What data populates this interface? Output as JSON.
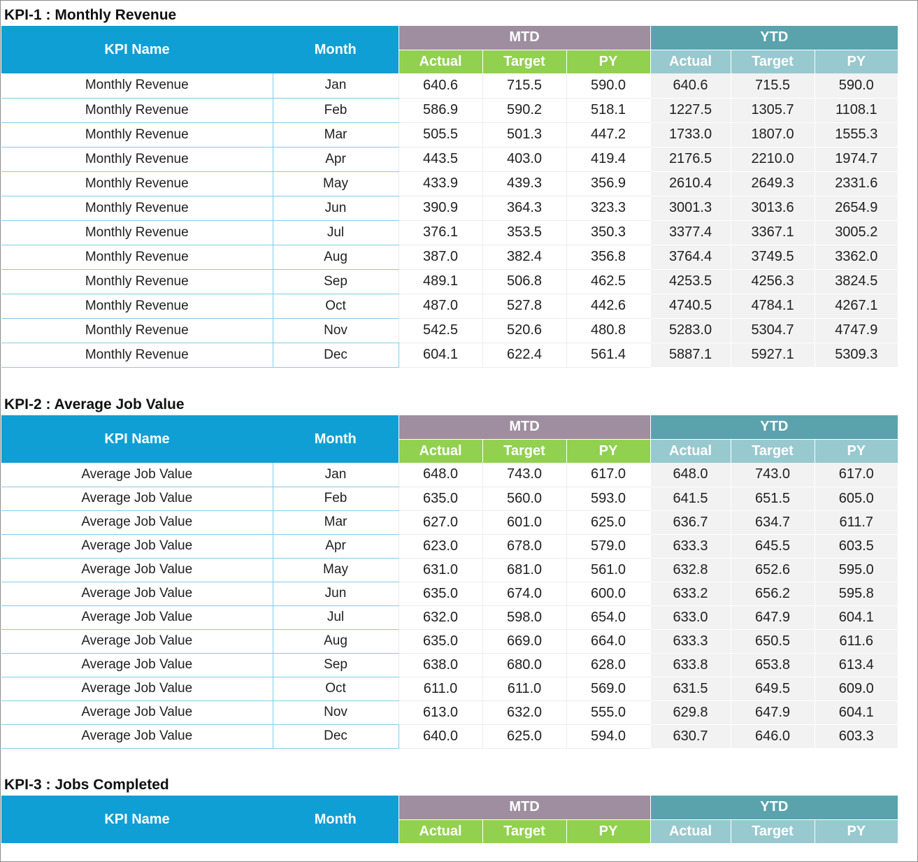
{
  "headers": {
    "kpi_name": "KPI Name",
    "month": "Month",
    "mtd": "MTD",
    "ytd": "YTD",
    "actual": "Actual",
    "target": "Target",
    "py": "PY"
  },
  "colors": {
    "header_blue": "#0f9fd5",
    "mtd_purple": "#9e8ea0",
    "ytd_teal": "#5aa3ad",
    "mtd_sub_green": "#92d050",
    "ytd_sub_teal": "#97c9cf",
    "ytd_cell_gray": "#f2f2f2"
  },
  "sections": [
    {
      "title": "KPI-1 : Monthly Revenue",
      "rows": [
        {
          "kpi": "Monthly Revenue",
          "month": "Jan",
          "mtd_actual": "640.6",
          "mtd_target": "715.5",
          "mtd_py": "590.0",
          "ytd_actual": "640.6",
          "ytd_target": "715.5",
          "ytd_py": "590.0"
        },
        {
          "kpi": "Monthly Revenue",
          "month": "Feb",
          "mtd_actual": "586.9",
          "mtd_target": "590.2",
          "mtd_py": "518.1",
          "ytd_actual": "1227.5",
          "ytd_target": "1305.7",
          "ytd_py": "1108.1"
        },
        {
          "kpi": "Monthly Revenue",
          "month": "Mar",
          "mtd_actual": "505.5",
          "mtd_target": "501.3",
          "mtd_py": "447.2",
          "ytd_actual": "1733.0",
          "ytd_target": "1807.0",
          "ytd_py": "1555.3"
        },
        {
          "kpi": "Monthly Revenue",
          "month": "Apr",
          "mtd_actual": "443.5",
          "mtd_target": "403.0",
          "mtd_py": "419.4",
          "ytd_actual": "2176.5",
          "ytd_target": "2210.0",
          "ytd_py": "1974.7"
        },
        {
          "kpi": "Monthly Revenue",
          "month": "May",
          "mtd_actual": "433.9",
          "mtd_target": "439.3",
          "mtd_py": "356.9",
          "ytd_actual": "2610.4",
          "ytd_target": "2649.3",
          "ytd_py": "2331.6"
        },
        {
          "kpi": "Monthly Revenue",
          "month": "Jun",
          "mtd_actual": "390.9",
          "mtd_target": "364.3",
          "mtd_py": "323.3",
          "ytd_actual": "3001.3",
          "ytd_target": "3013.6",
          "ytd_py": "2654.9"
        },
        {
          "kpi": "Monthly Revenue",
          "month": "Jul",
          "mtd_actual": "376.1",
          "mtd_target": "353.5",
          "mtd_py": "350.3",
          "ytd_actual": "3377.4",
          "ytd_target": "3367.1",
          "ytd_py": "3005.2"
        },
        {
          "kpi": "Monthly Revenue",
          "month": "Aug",
          "mtd_actual": "387.0",
          "mtd_target": "382.4",
          "mtd_py": "356.8",
          "ytd_actual": "3764.4",
          "ytd_target": "3749.5",
          "ytd_py": "3362.0"
        },
        {
          "kpi": "Monthly Revenue",
          "month": "Sep",
          "mtd_actual": "489.1",
          "mtd_target": "506.8",
          "mtd_py": "462.5",
          "ytd_actual": "4253.5",
          "ytd_target": "4256.3",
          "ytd_py": "3824.5"
        },
        {
          "kpi": "Monthly Revenue",
          "month": "Oct",
          "mtd_actual": "487.0",
          "mtd_target": "527.8",
          "mtd_py": "442.6",
          "ytd_actual": "4740.5",
          "ytd_target": "4784.1",
          "ytd_py": "4267.1"
        },
        {
          "kpi": "Monthly Revenue",
          "month": "Nov",
          "mtd_actual": "542.5",
          "mtd_target": "520.6",
          "mtd_py": "480.8",
          "ytd_actual": "5283.0",
          "ytd_target": "5304.7",
          "ytd_py": "4747.9"
        },
        {
          "kpi": "Monthly Revenue",
          "month": "Dec",
          "mtd_actual": "604.1",
          "mtd_target": "622.4",
          "mtd_py": "561.4",
          "ytd_actual": "5887.1",
          "ytd_target": "5927.1",
          "ytd_py": "5309.3"
        }
      ]
    },
    {
      "title": "KPI-2 : Average Job Value",
      "rows": [
        {
          "kpi": "Average Job Value",
          "month": "Jan",
          "mtd_actual": "648.0",
          "mtd_target": "743.0",
          "mtd_py": "617.0",
          "ytd_actual": "648.0",
          "ytd_target": "743.0",
          "ytd_py": "617.0"
        },
        {
          "kpi": "Average Job Value",
          "month": "Feb",
          "mtd_actual": "635.0",
          "mtd_target": "560.0",
          "mtd_py": "593.0",
          "ytd_actual": "641.5",
          "ytd_target": "651.5",
          "ytd_py": "605.0"
        },
        {
          "kpi": "Average Job Value",
          "month": "Mar",
          "mtd_actual": "627.0",
          "mtd_target": "601.0",
          "mtd_py": "625.0",
          "ytd_actual": "636.7",
          "ytd_target": "634.7",
          "ytd_py": "611.7"
        },
        {
          "kpi": "Average Job Value",
          "month": "Apr",
          "mtd_actual": "623.0",
          "mtd_target": "678.0",
          "mtd_py": "579.0",
          "ytd_actual": "633.3",
          "ytd_target": "645.5",
          "ytd_py": "603.5"
        },
        {
          "kpi": "Average Job Value",
          "month": "May",
          "mtd_actual": "631.0",
          "mtd_target": "681.0",
          "mtd_py": "561.0",
          "ytd_actual": "632.8",
          "ytd_target": "652.6",
          "ytd_py": "595.0"
        },
        {
          "kpi": "Average Job Value",
          "month": "Jun",
          "mtd_actual": "635.0",
          "mtd_target": "674.0",
          "mtd_py": "600.0",
          "ytd_actual": "633.2",
          "ytd_target": "656.2",
          "ytd_py": "595.8"
        },
        {
          "kpi": "Average Job Value",
          "month": "Jul",
          "mtd_actual": "632.0",
          "mtd_target": "598.0",
          "mtd_py": "654.0",
          "ytd_actual": "633.0",
          "ytd_target": "647.9",
          "ytd_py": "604.1"
        },
        {
          "kpi": "Average Job Value",
          "month": "Aug",
          "mtd_actual": "635.0",
          "mtd_target": "669.0",
          "mtd_py": "664.0",
          "ytd_actual": "633.3",
          "ytd_target": "650.5",
          "ytd_py": "611.6"
        },
        {
          "kpi": "Average Job Value",
          "month": "Sep",
          "mtd_actual": "638.0",
          "mtd_target": "680.0",
          "mtd_py": "628.0",
          "ytd_actual": "633.8",
          "ytd_target": "653.8",
          "ytd_py": "613.4"
        },
        {
          "kpi": "Average Job Value",
          "month": "Oct",
          "mtd_actual": "611.0",
          "mtd_target": "611.0",
          "mtd_py": "569.0",
          "ytd_actual": "631.5",
          "ytd_target": "649.5",
          "ytd_py": "609.0"
        },
        {
          "kpi": "Average Job Value",
          "month": "Nov",
          "mtd_actual": "613.0",
          "mtd_target": "632.0",
          "mtd_py": "555.0",
          "ytd_actual": "629.8",
          "ytd_target": "647.9",
          "ytd_py": "604.1"
        },
        {
          "kpi": "Average Job Value",
          "month": "Dec",
          "mtd_actual": "640.0",
          "mtd_target": "625.0",
          "mtd_py": "594.0",
          "ytd_actual": "630.7",
          "ytd_target": "646.0",
          "ytd_py": "603.3"
        }
      ]
    },
    {
      "title": "KPI-3 : Jobs Completed",
      "rows": []
    }
  ]
}
